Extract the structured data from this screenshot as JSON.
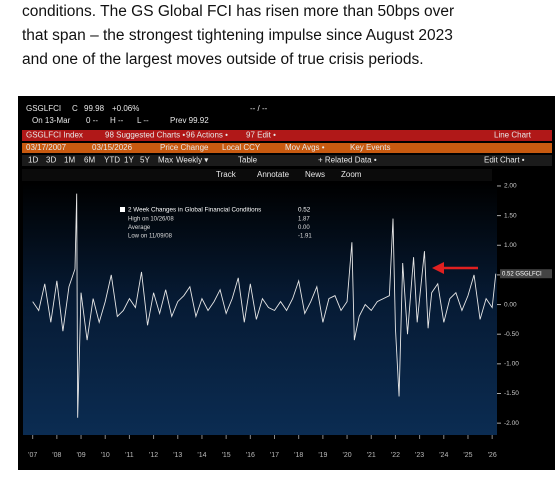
{
  "document": {
    "paragraph": [
      "conditions. The GS Global FCI has risen more than 50bps over",
      "that span – the strongest tightening impulse since August 2023",
      "and one of the largest moves outside of true crisis periods."
    ]
  },
  "terminal": {
    "row1": [
      "GSGLFCI",
      "C",
      "99.98",
      "+0.06%",
      "-- / --"
    ],
    "row2": [
      "On 13-Mar",
      "0 --",
      "H --",
      "L --",
      "Prev 99.92"
    ],
    "row3": [
      "GSGLFCI Index",
      "98 Suggested Charts •",
      "96 Actions •",
      "97 Edit •",
      "Line Chart"
    ],
    "row4": [
      "03/17/2007",
      "03/15/2026",
      "Price Change",
      "Local CCY",
      "Mov Avgs •",
      "Key Events"
    ],
    "row5": [
      "1D",
      "3D",
      "1M",
      "6M",
      "YTD",
      "1Y",
      "5Y",
      "Max",
      "Weekly ▾",
      "Table",
      "+ Related Data •",
      "Edit Chart •"
    ],
    "row6": [
      "Track",
      "Annotate",
      "News",
      "Zoom"
    ]
  },
  "chart_data": {
    "type": "line",
    "legend_rows": [
      [
        "High on 10/26/08",
        "1.87"
      ],
      [
        "Average",
        "0.00"
      ],
      [
        "Low on 11/09/08",
        "-1.91"
      ]
    ],
    "legend_value": "0.52",
    "last_value_label": "0.52 GSGLFCI",
    "x": [
      2007,
      2007.25,
      2007.5,
      2007.75,
      2008,
      2008.25,
      2008.5,
      2008.75,
      2008.82,
      2008.86,
      2009,
      2009.25,
      2009.5,
      2009.75,
      2010,
      2010.25,
      2010.5,
      2010.75,
      2011,
      2011.25,
      2011.5,
      2011.75,
      2012,
      2012.25,
      2012.5,
      2012.75,
      2013,
      2013.25,
      2013.5,
      2013.75,
      2014,
      2014.25,
      2014.5,
      2014.75,
      2015,
      2015.25,
      2015.5,
      2015.75,
      2016,
      2016.25,
      2016.5,
      2016.75,
      2017,
      2017.25,
      2017.5,
      2017.75,
      2018,
      2018.25,
      2018.5,
      2018.75,
      2019,
      2019.25,
      2019.5,
      2019.75,
      2020,
      2020.2,
      2020.3,
      2020.5,
      2020.75,
      2021,
      2021.25,
      2021.5,
      2021.75,
      2021.9,
      2022,
      2022.15,
      2022.3,
      2022.5,
      2022.75,
      2022.9,
      2023.2,
      2023.35,
      2023.5,
      2023.75,
      2024,
      2024.25,
      2024.5,
      2024.75,
      2025,
      2025.25,
      2025.5,
      2025.75,
      2026,
      2026.15
    ],
    "series": [
      {
        "name": "2 Week Changes in Global Financial Conditions",
        "color": "#e6e6e6",
        "values": [
          0.05,
          -0.1,
          0.35,
          -0.3,
          0.4,
          -0.45,
          0.3,
          0.6,
          1.87,
          -1.91,
          0.2,
          -0.6,
          0.1,
          -0.3,
          0.05,
          0.5,
          -0.2,
          -0.1,
          0.1,
          -0.05,
          0.55,
          -0.35,
          0.2,
          -0.15,
          0.25,
          -0.2,
          0.05,
          0.15,
          0.3,
          -0.2,
          0.1,
          -0.1,
          0.05,
          0.25,
          -0.15,
          0.1,
          0.45,
          -0.3,
          0.35,
          -0.25,
          0.1,
          -0.05,
          -0.1,
          0.05,
          -0.1,
          0.1,
          0.4,
          -0.15,
          0.05,
          0.3,
          -0.3,
          0.1,
          0.15,
          -0.1,
          0.05,
          1.05,
          -0.6,
          -0.2,
          0,
          -0.1,
          0.05,
          0.1,
          0.15,
          1.45,
          -0.4,
          -1.55,
          0.7,
          -0.5,
          0.8,
          -0.3,
          0.9,
          -0.4,
          0.2,
          0.35,
          -0.3,
          0.1,
          0.2,
          -0.1,
          0.15,
          0.5,
          -0.25,
          0.1,
          -0.05,
          0.52
        ]
      }
    ],
    "xlim": [
      2006.6,
      2026.2
    ],
    "xticks": [
      {
        "value": 2007,
        "label": "'07"
      },
      {
        "value": 2008,
        "label": "'08"
      },
      {
        "value": 2009,
        "label": "'09"
      },
      {
        "value": 2010,
        "label": "'10"
      },
      {
        "value": 2011,
        "label": "'11"
      },
      {
        "value": 2012,
        "label": "'12"
      },
      {
        "value": 2013,
        "label": "'13"
      },
      {
        "value": 2014,
        "label": "'14"
      },
      {
        "value": 2015,
        "label": "'15"
      },
      {
        "value": 2016,
        "label": "'16"
      },
      {
        "value": 2017,
        "label": "'17"
      },
      {
        "value": 2018,
        "label": "'18"
      },
      {
        "value": 2019,
        "label": "'19"
      },
      {
        "value": 2020,
        "label": "'20"
      },
      {
        "value": 2021,
        "label": "'21"
      },
      {
        "value": 2022,
        "label": "'22"
      },
      {
        "value": 2023,
        "label": "'23"
      },
      {
        "value": 2024,
        "label": "'24"
      },
      {
        "value": 2025,
        "label": "'25"
      },
      {
        "value": 2026,
        "label": "'26"
      }
    ],
    "ylim": [
      -2.2,
      2.05
    ],
    "yticks": [
      {
        "value": 2,
        "label": "2.00"
      },
      {
        "value": 1.5,
        "label": "1.50"
      },
      {
        "value": 1,
        "label": "1.00"
      },
      {
        "value": 0.5,
        "label": "0.50"
      },
      {
        "value": 0,
        "label": "0.00"
      },
      {
        "value": -0.5,
        "label": "-0.50"
      },
      {
        "value": -1,
        "label": "-1.00"
      },
      {
        "value": -1.5,
        "label": "-1.50"
      },
      {
        "value": -2,
        "label": "-2.00"
      }
    ]
  }
}
